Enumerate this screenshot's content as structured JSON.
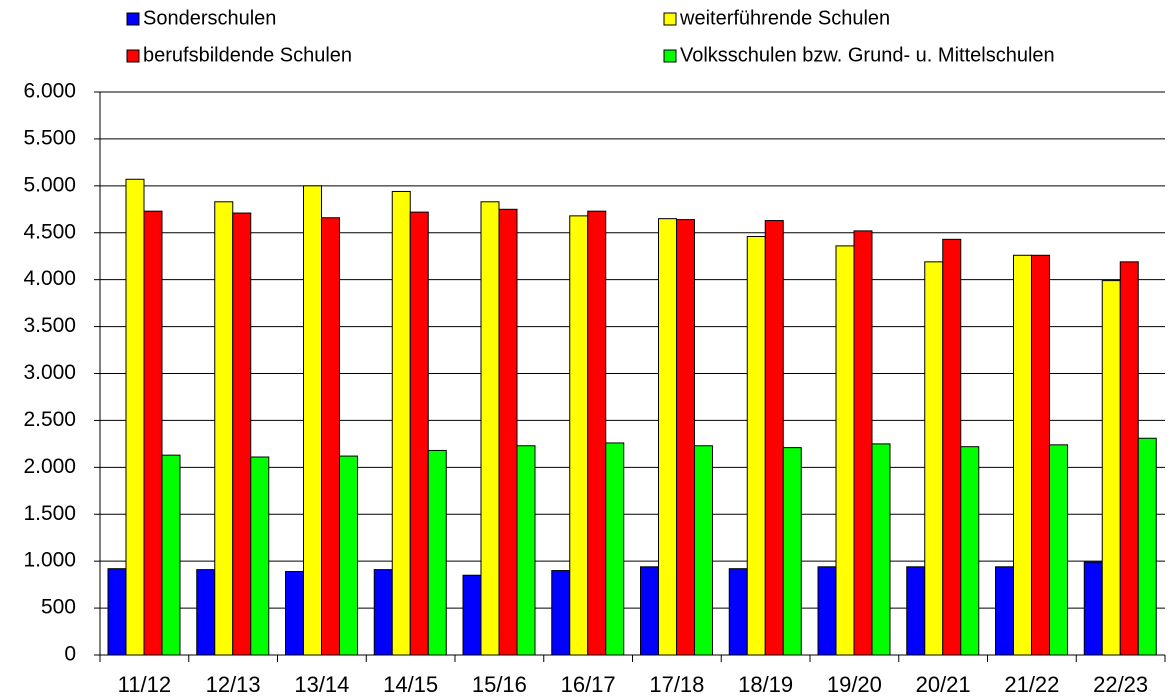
{
  "chart_data": {
    "type": "bar",
    "categories": [
      "11/12",
      "12/13",
      "13/14",
      "14/15",
      "15/16",
      "16/17",
      "17/18",
      "18/19",
      "19/20",
      "20/21",
      "21/22",
      "22/23"
    ],
    "series": [
      {
        "name": "Sonderschulen",
        "color": "#0000ff",
        "values": [
          920,
          910,
          890,
          910,
          850,
          900,
          940,
          920,
          940,
          940,
          940,
          990
        ]
      },
      {
        "name": "weiterführende Schulen",
        "color": "#ffff00",
        "values": [
          5070,
          4830,
          5000,
          4940,
          4830,
          4680,
          4650,
          4460,
          4360,
          4190,
          4260,
          3990
        ]
      },
      {
        "name": "berufsbildende Schulen",
        "color": "#ff0000",
        "values": [
          4730,
          4710,
          4660,
          4720,
          4750,
          4730,
          4640,
          4630,
          4520,
          4430,
          4260,
          4190
        ]
      },
      {
        "name": "Volksschulen bzw. Grund- u. Mittelschulen",
        "color": "#00ff00",
        "values": [
          2130,
          2110,
          2120,
          2180,
          2230,
          2260,
          2230,
          2210,
          2250,
          2220,
          2240,
          2310
        ]
      }
    ],
    "ylim": [
      0,
      6000
    ],
    "yticks": [
      0,
      500,
      {
        "value": 1000,
        "label": "1.000"
      },
      {
        "value": 1500,
        "label": "1.500"
      },
      {
        "value": 2000,
        "label": "2.000"
      },
      {
        "value": 2500,
        "label": "2.500"
      },
      {
        "value": 3000,
        "label": "3.000"
      },
      {
        "value": 3500,
        "label": "3.500"
      },
      {
        "value": 4000,
        "label": "4.000"
      },
      {
        "value": 4500,
        "label": "4.500"
      },
      {
        "value": 5000,
        "label": "5.000"
      },
      {
        "value": 5500,
        "label": "5.500"
      },
      {
        "value": 6000,
        "label": "6.000"
      }
    ],
    "grid": true,
    "legend": "top"
  }
}
